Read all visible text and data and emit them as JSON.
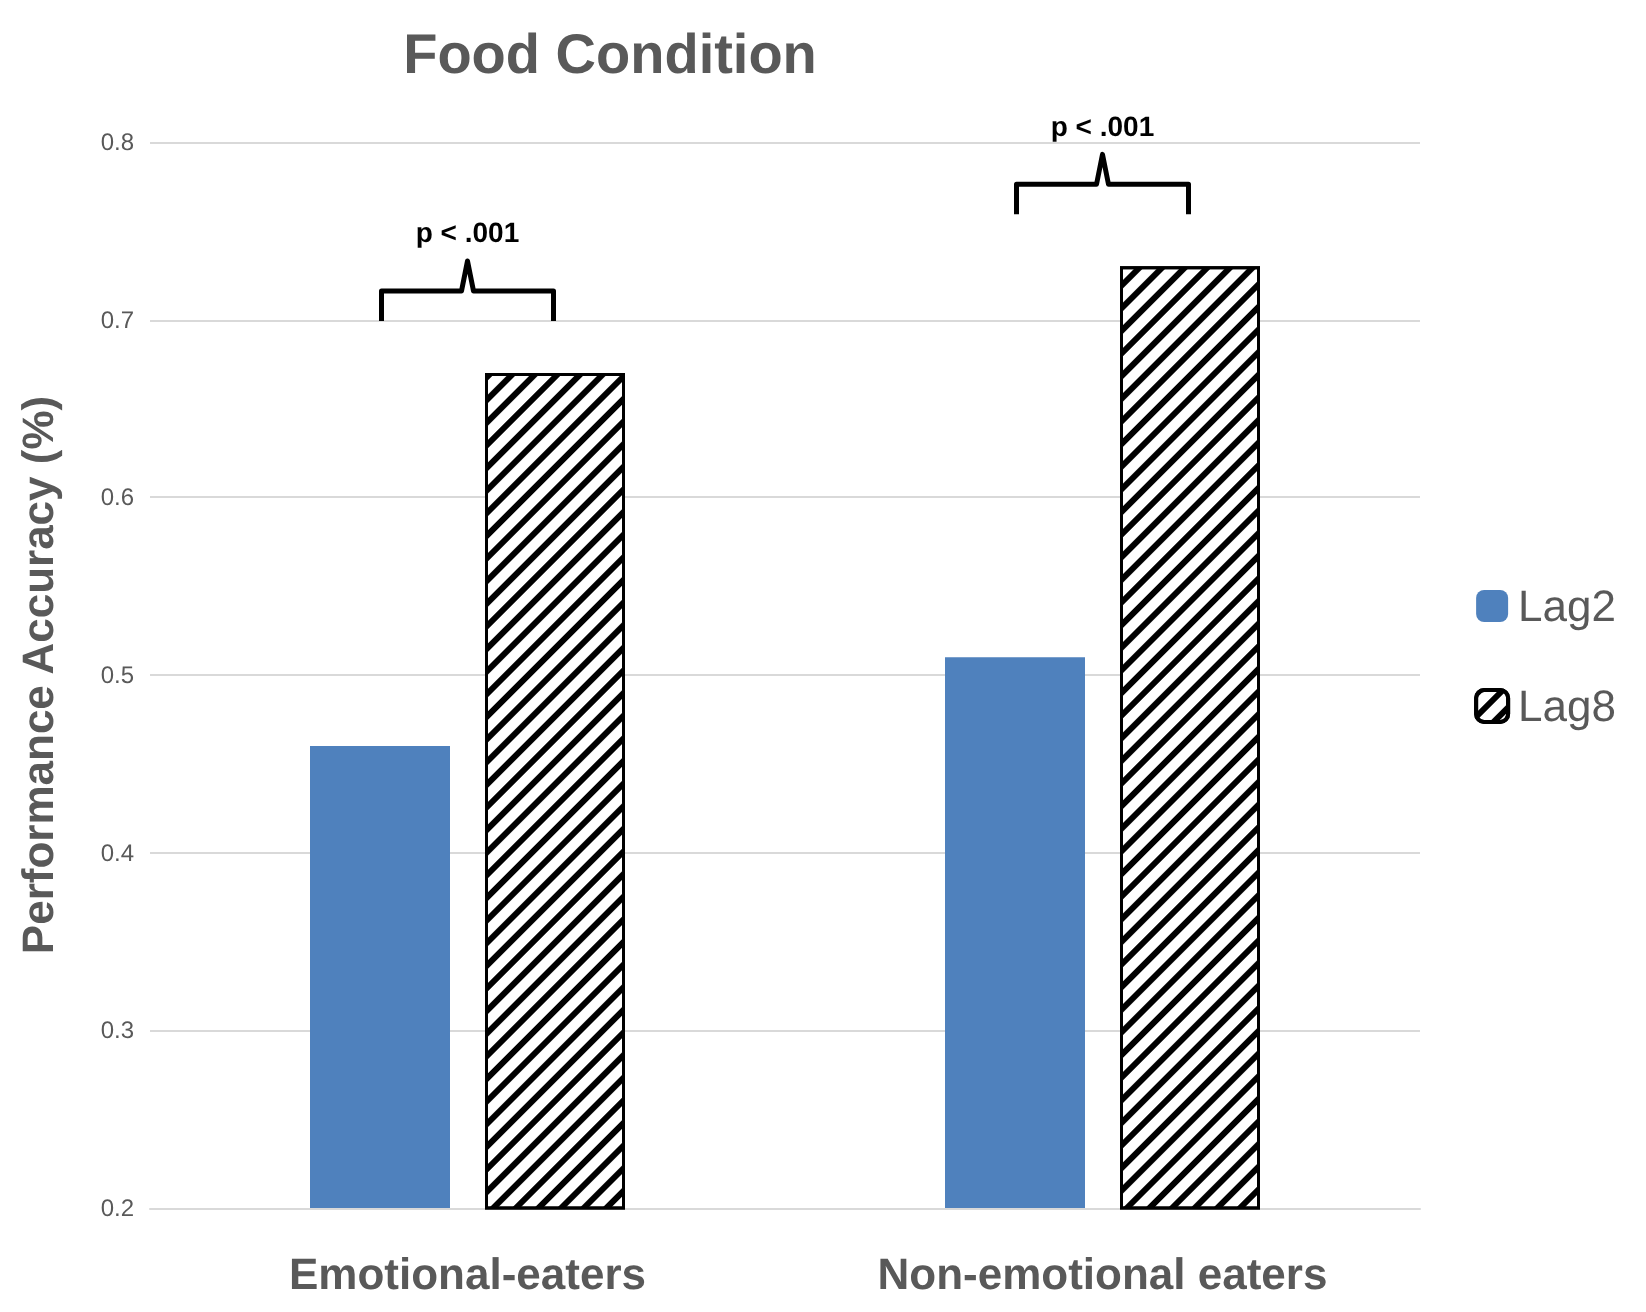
{
  "chart_data": {
    "type": "bar",
    "title": "Food Condition",
    "ylabel": "Performance Accuracy (%)",
    "categories": [
      "Emotional-eaters",
      "Non-emotional eaters"
    ],
    "series": [
      {
        "name": "Lag2",
        "color": "#4f81bd",
        "values": [
          0.46,
          0.51
        ]
      },
      {
        "name": "Lag8",
        "color": "#000000",
        "values": [
          0.67,
          0.73
        ]
      }
    ],
    "ylim": [
      0.2,
      0.8
    ],
    "yticks": [
      0.2,
      0.3,
      0.4,
      0.5,
      0.6,
      0.7,
      0.8
    ],
    "grid": "y",
    "legend": "right",
    "annotations": [
      "p < .001",
      "p < .001"
    ]
  }
}
